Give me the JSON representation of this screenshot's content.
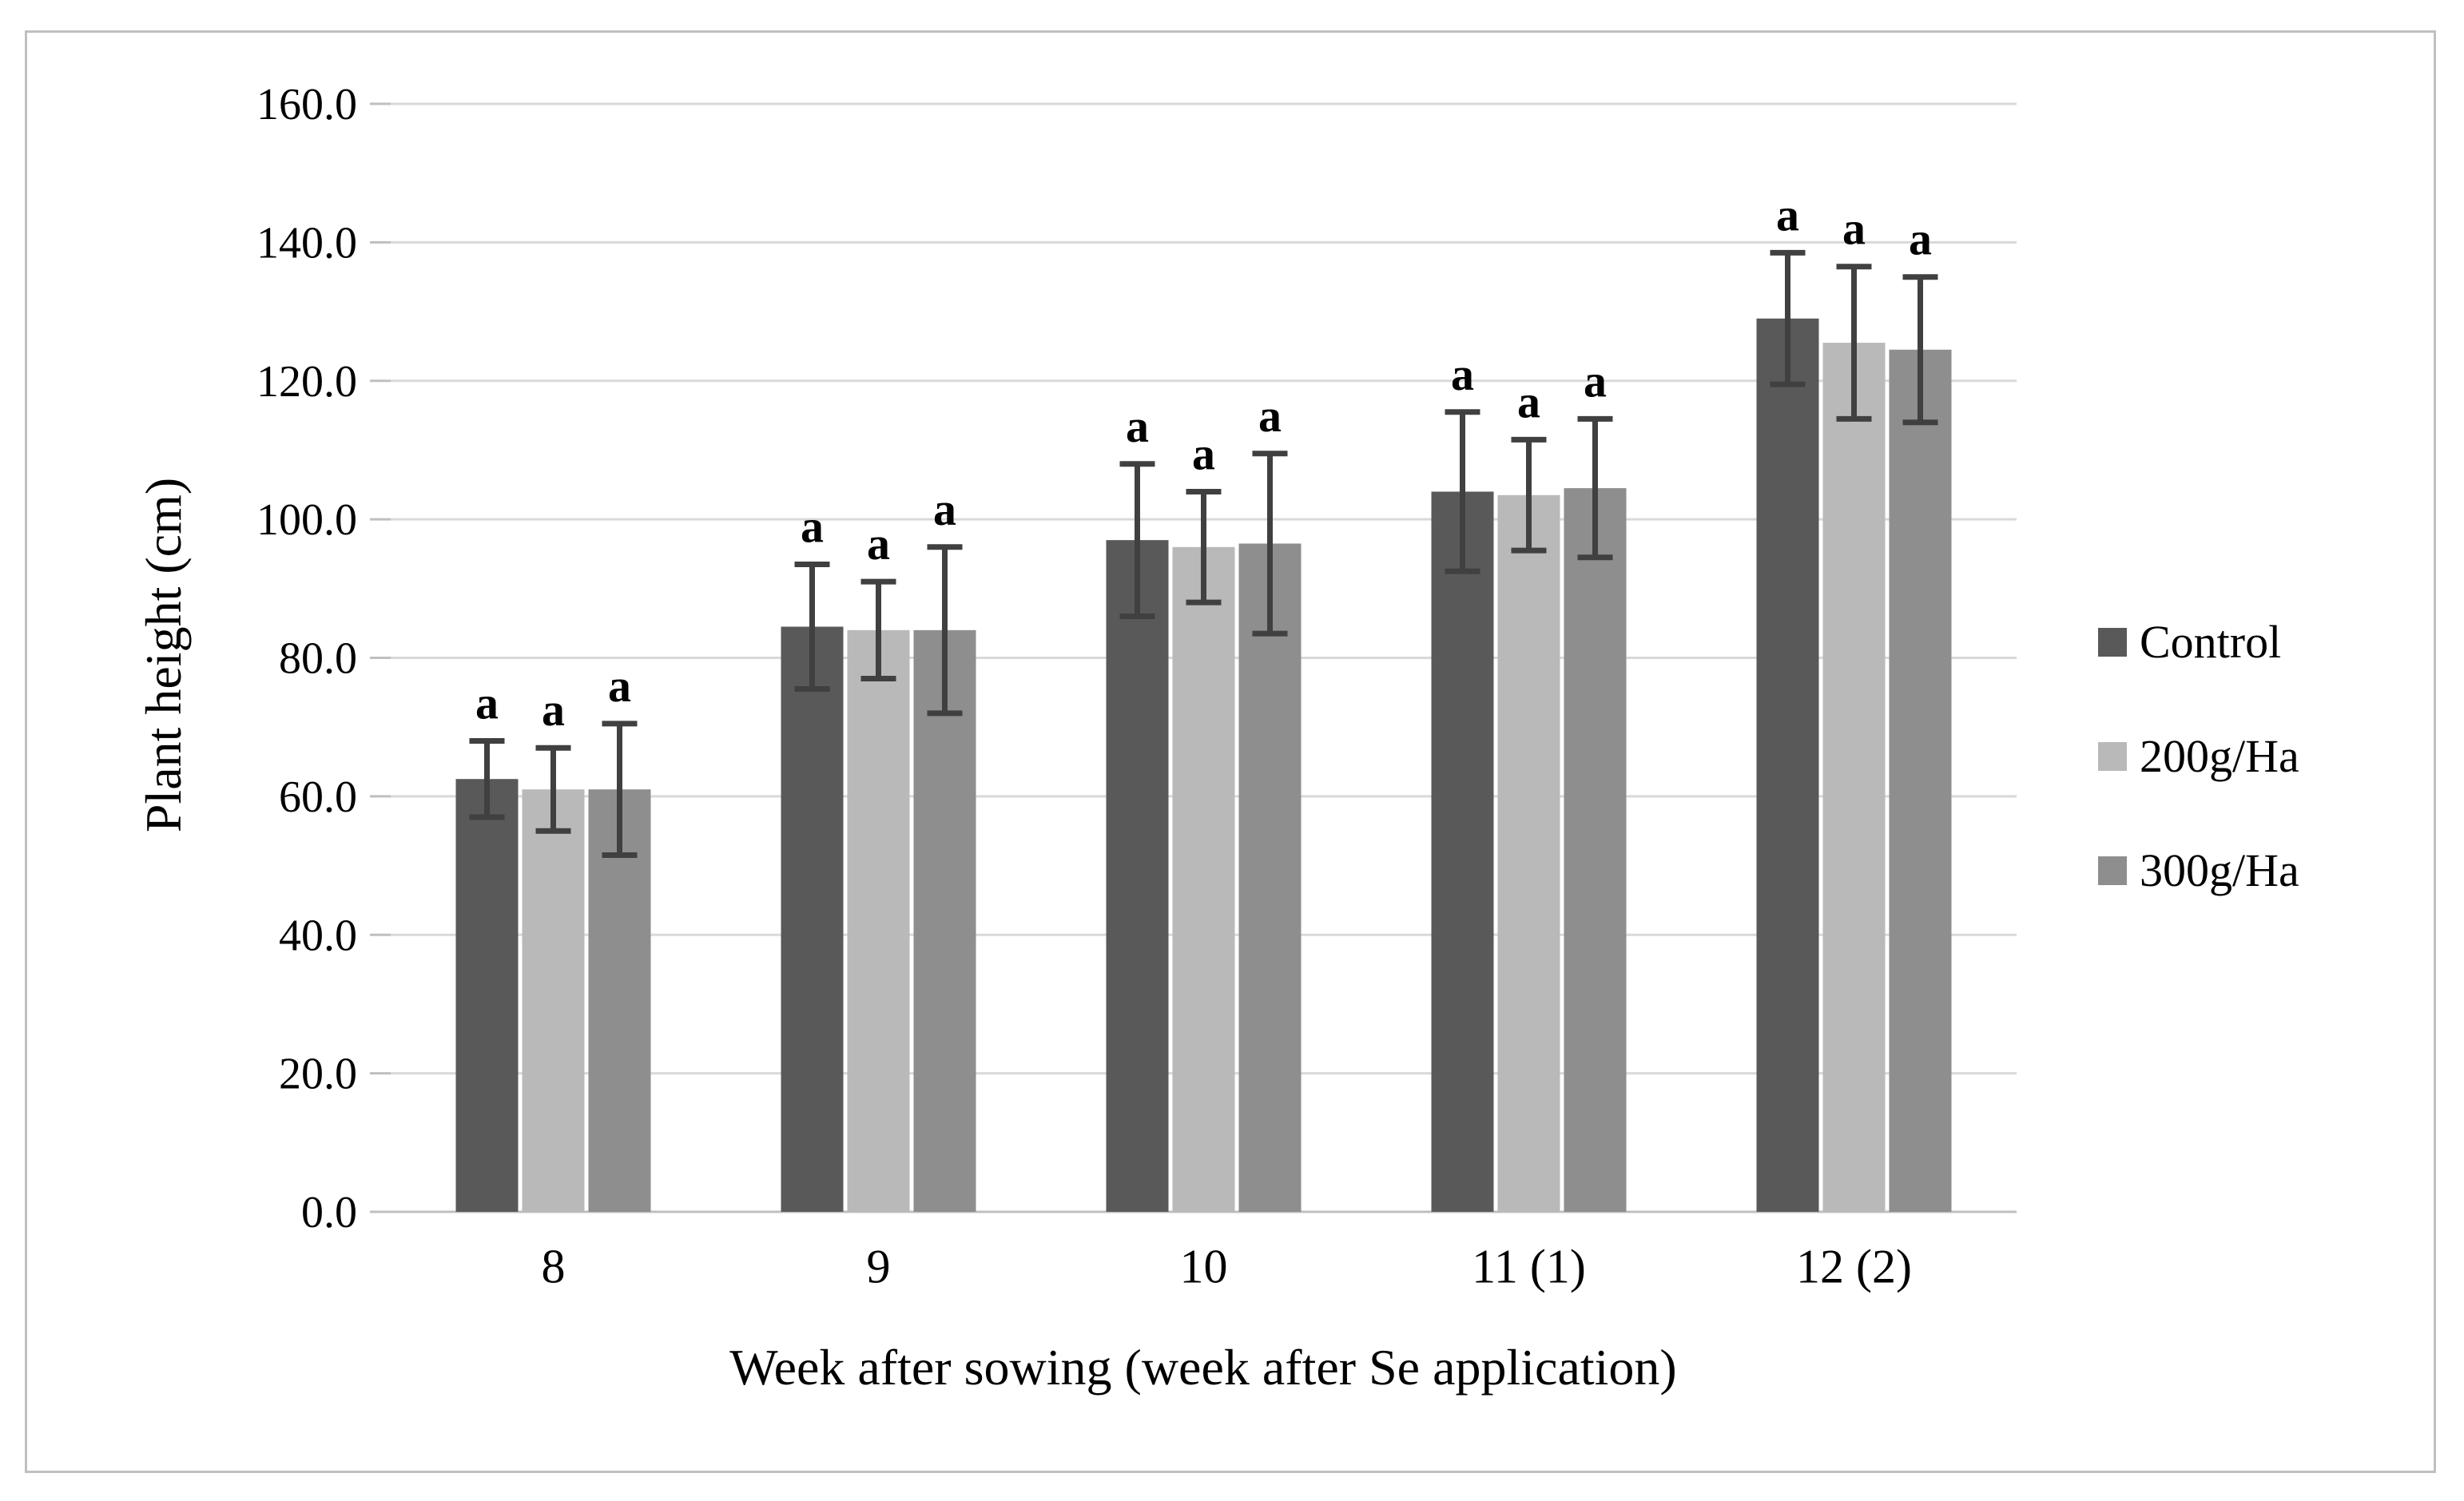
{
  "figure": {
    "kind": "grouped bar chart with error bars",
    "background": "#ffffff"
  },
  "chart_data": {
    "type": "bar",
    "title": "",
    "xlabel": "Week after sowing (week after Se application)",
    "ylabel": "Plant height (cm)",
    "categories": [
      "8",
      "9",
      "10",
      "11 (1)",
      "12 (2)"
    ],
    "series": [
      {
        "name": "Control",
        "color": "#595959",
        "values": [
          62.5,
          84.5,
          97.0,
          104.0,
          129.0
        ],
        "error_plus_minus": [
          5.5,
          9.0,
          11.0,
          11.5,
          9.5
        ],
        "sig_letters": [
          "a",
          "a",
          "a",
          "a",
          "a"
        ]
      },
      {
        "name": "200g/Ha",
        "color": "#b9b9b9",
        "values": [
          61.0,
          84.0,
          96.0,
          103.5,
          125.5
        ],
        "error_plus_minus": [
          6.0,
          7.0,
          8.0,
          8.0,
          11.0
        ],
        "sig_letters": [
          "a",
          "a",
          "a",
          "a",
          "a"
        ]
      },
      {
        "name": "300g/Ha",
        "color": "#8e8e8e",
        "values": [
          61.0,
          84.0,
          96.5,
          104.5,
          124.5
        ],
        "error_plus_minus": [
          9.5,
          12.0,
          13.0,
          10.0,
          10.5
        ],
        "sig_letters": [
          "a",
          "a",
          "a",
          "a",
          "a"
        ]
      }
    ],
    "ylim": [
      0,
      160
    ],
    "ytick_step": 20,
    "ytick_labels": [
      "0.0",
      "20.0",
      "40.0",
      "60.0",
      "80.0",
      "100.0",
      "120.0",
      "140.0",
      "160.0"
    ],
    "grid": true,
    "legend_position": "right",
    "colors": {
      "gridline": "#d9d9d9",
      "axis_line": "#bfbfbf",
      "error_bar": "#404040",
      "text": "#000000",
      "figure_border": "#c0c0c0"
    }
  }
}
